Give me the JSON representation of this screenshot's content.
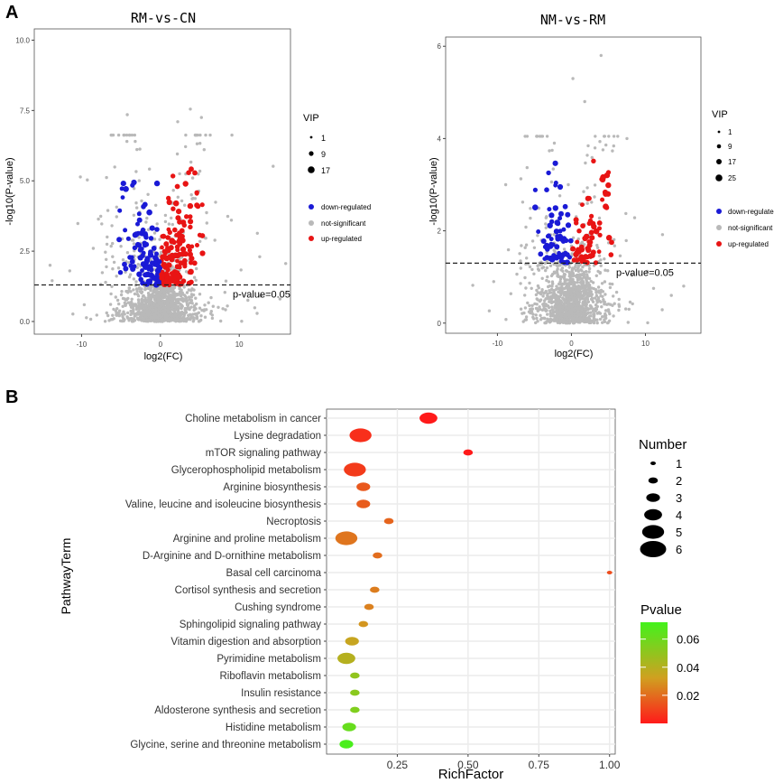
{
  "panel_labels": {
    "a": "A",
    "b": "B"
  },
  "volcano_legend_labels": {
    "vip_title": "VIP",
    "down": "down-regulated",
    "ns": "not-significant",
    "up": "up-regulated"
  },
  "colors": {
    "down": "#1a1ad6",
    "ns": "#b9b9b9",
    "up": "#e81414",
    "grid": "#ebebeb",
    "pv_high": "#43f21c",
    "pv_mid": "#c8b020",
    "pv_low": "#ff1a1a"
  },
  "chart_data": [
    {
      "type": "scatter",
      "id": "volcano1",
      "title": "RM-vs-CN",
      "xlabel": "log2(FC)",
      "ylabel": "-log10(P-value)",
      "xlim": [
        -16,
        16.5
      ],
      "ylim": [
        -0.45,
        10.4
      ],
      "xticks": [
        -10,
        0,
        10
      ],
      "xtick_labels": [
        "-10",
        "0",
        "10"
      ],
      "yticks": [
        0,
        2.5,
        5,
        7.5,
        10
      ],
      "ytick_labels": [
        "0.0",
        "2.5",
        "5.0",
        "7.5",
        "10.0"
      ],
      "threshold": {
        "y": 1.3,
        "label": "p-value=0.05"
      },
      "legend": {
        "size_title": "VIP",
        "size_values": [
          "1",
          "9",
          "17"
        ],
        "groups": [
          "down-regulated",
          "not-significant",
          "up-regulated"
        ]
      },
      "highlight_points": [
        [
          -4.2,
          7.35
        ],
        [
          -3.2,
          6.4
        ],
        [
          3.8,
          7.55
        ],
        [
          5.2,
          7.25
        ],
        [
          2.2,
          7.1
        ],
        [
          12.6,
          2.3
        ],
        [
          -14,
          2.0
        ],
        [
          9.0,
          3.6
        ],
        [
          -11.5,
          1.8
        ],
        [
          8.5,
          0.55
        ]
      ]
    },
    {
      "type": "scatter",
      "id": "volcano2",
      "title": "NM-vs-RM",
      "xlabel": "log2(FC)",
      "ylabel": "-log10(P-value)",
      "xlim": [
        -17,
        17.5
      ],
      "ylim": [
        -0.22,
        6.2
      ],
      "xticks": [
        -10,
        0,
        10
      ],
      "xtick_labels": [
        "-10",
        "0",
        "10"
      ],
      "yticks": [
        0,
        2,
        4,
        6
      ],
      "ytick_labels": [
        "0",
        "2",
        "4",
        "6"
      ],
      "threshold": {
        "y": 1.3,
        "label": "p-value=0.05"
      },
      "legend": {
        "size_title": "VIP",
        "size_values": [
          "1",
          "9",
          "17",
          "25"
        ],
        "groups": [
          "down-regulated",
          "not-significant",
          "up-regulated"
        ]
      },
      "highlight_points": [
        [
          4.0,
          5.8
        ],
        [
          1.8,
          4.8
        ],
        [
          7.5,
          4.0
        ],
        [
          -0.5,
          2.35
        ],
        [
          0.2,
          5.3
        ],
        [
          13.5,
          0.6
        ],
        [
          -10.5,
          0.9
        ]
      ]
    },
    {
      "type": "scatter",
      "id": "bubble",
      "title": "",
      "xlabel": "RichFactor",
      "ylabel": "PathwayTerm",
      "xlim": [
        0.0,
        1.02
      ],
      "xticks": [
        0.25,
        0.5,
        0.75,
        1.0
      ],
      "xtick_labels": [
        "0.25",
        "0.50",
        "0.75",
        "1.00"
      ],
      "categories": [
        "Choline metabolism in cancer",
        "Lysine degradation",
        "mTOR signaling pathway",
        "Glycerophospholipid metabolism",
        "Arginine biosynthesis",
        "Valine, leucine and isoleucine biosynthesis",
        "Necroptosis",
        "Arginine and proline metabolism",
        "D-Arginine and D-ornithine metabolism",
        "Basal cell carcinoma",
        "Cortisol synthesis and secretion",
        "Cushing syndrome",
        "Sphingolipid signaling pathway",
        "Vitamin digestion and absorption",
        "Pyrimidine metabolism",
        "Riboflavin metabolism",
        "Insulin resistance",
        "Aldosterone synthesis and secretion",
        "Histidine metabolism",
        "Glycine, serine and threonine metabolism"
      ],
      "rich_factor": [
        0.36,
        0.12,
        0.5,
        0.1,
        0.13,
        0.13,
        0.22,
        0.07,
        0.18,
        1.0,
        0.17,
        0.15,
        0.13,
        0.09,
        0.07,
        0.1,
        0.1,
        0.1,
        0.08,
        0.07
      ],
      "number": [
        4,
        5,
        2,
        5,
        3,
        3,
        2,
        5,
        2,
        1,
        2,
        2,
        2,
        3,
        4,
        2,
        2,
        2,
        3,
        3
      ],
      "pvalue": [
        0.0,
        0.005,
        0.0,
        0.008,
        0.015,
        0.016,
        0.018,
        0.022,
        0.02,
        0.012,
        0.024,
        0.025,
        0.03,
        0.035,
        0.04,
        0.05,
        0.052,
        0.055,
        0.062,
        0.07
      ],
      "size_legend": {
        "title": "Number",
        "values": [
          "1",
          "2",
          "3",
          "4",
          "5",
          "6"
        ]
      },
      "color_legend": {
        "title": "Pvalue",
        "ticks": [
          "0.06",
          "0.04",
          "0.02"
        ],
        "tick_values": [
          0.06,
          0.04,
          0.02
        ],
        "range": [
          0.0,
          0.072
        ]
      }
    }
  ]
}
